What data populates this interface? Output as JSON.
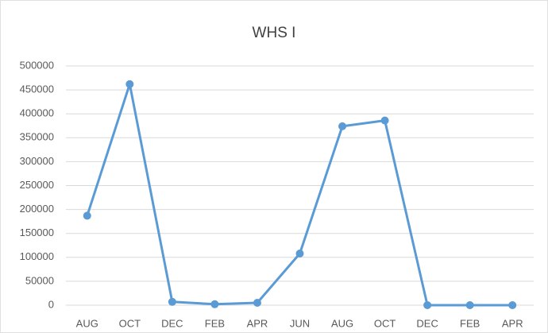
{
  "chart_data": {
    "type": "line",
    "title": "WHS I",
    "categories": [
      "AUG",
      "OCT",
      "DEC",
      "FEB",
      "APR",
      "JUN",
      "AUG",
      "OCT",
      "DEC",
      "FEB",
      "APR"
    ],
    "series": [
      {
        "name": "WHS I",
        "color": "#5b9bd5",
        "values": [
          187000,
          462000,
          7000,
          2000,
          5000,
          108000,
          374000,
          386000,
          0,
          0,
          0
        ]
      }
    ],
    "ylim": [
      0,
      500000
    ],
    "yticks": [
      0,
      50000,
      100000,
      150000,
      200000,
      250000,
      300000,
      350000,
      400000,
      450000,
      500000
    ],
    "grid": true
  }
}
